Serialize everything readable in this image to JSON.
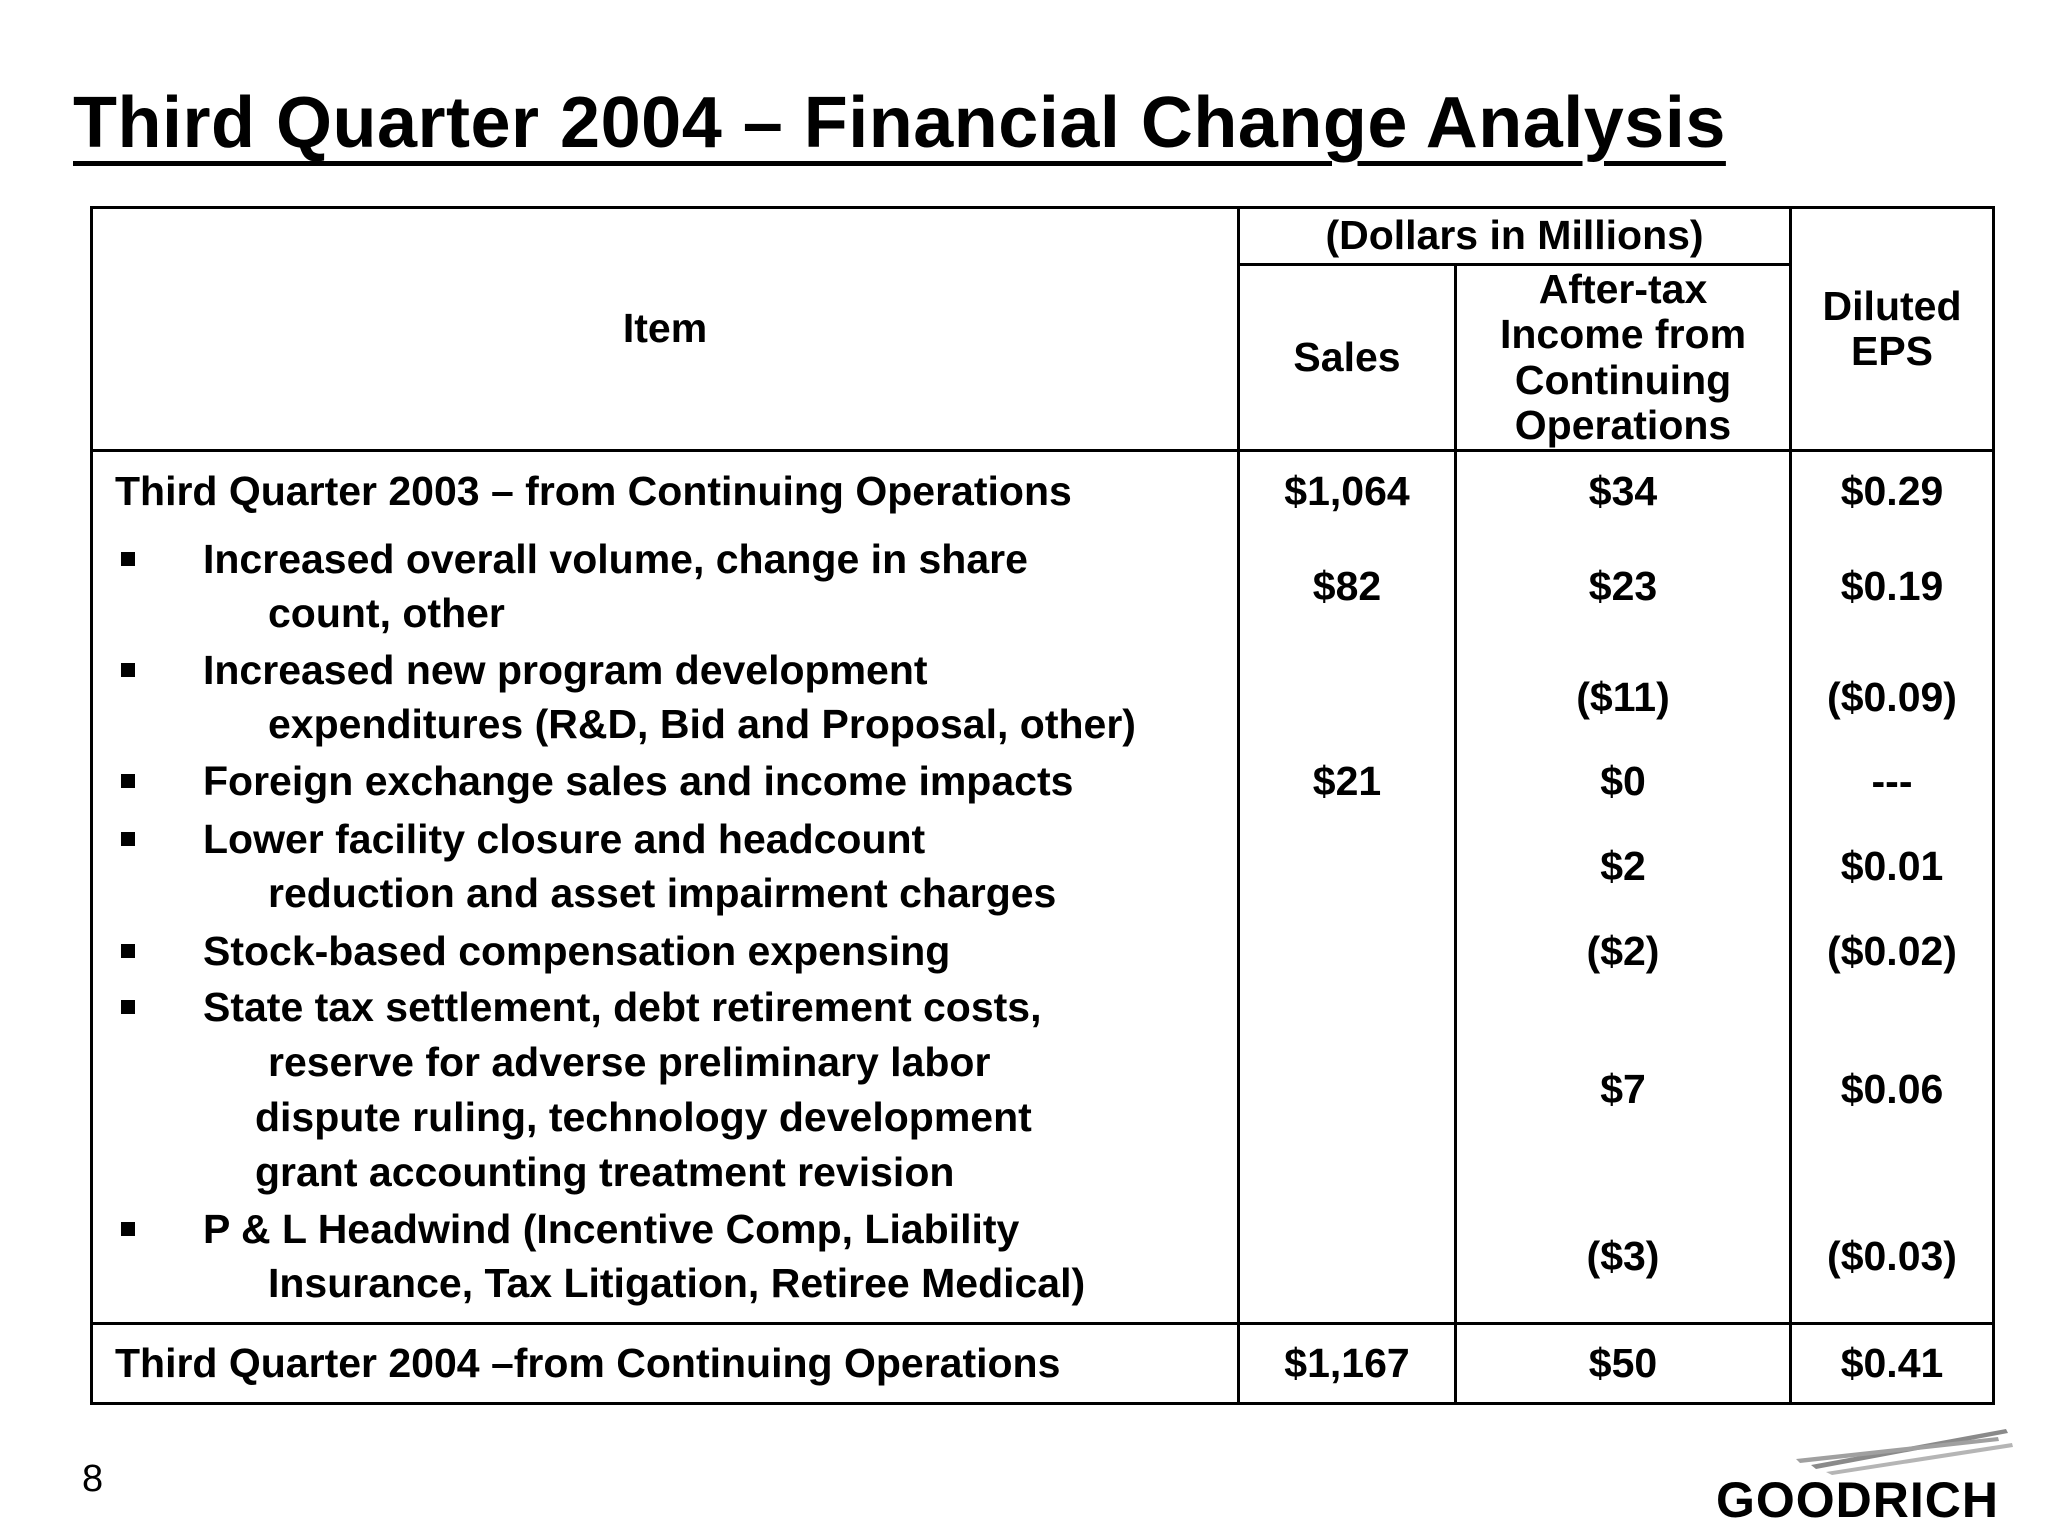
{
  "title": "Third Quarter 2004 – Financial Change Analysis",
  "table": {
    "header": {
      "item": "Item",
      "group": "(Dollars in Millions)",
      "sales": "Sales",
      "income_lines": [
        "After-tax",
        "Income from",
        "Continuing",
        "Operations"
      ],
      "eps_lines": [
        "Diluted",
        "EPS"
      ]
    },
    "start_row": {
      "label": "Third Quarter 2003 – from Continuing Operations",
      "sales": "$1,064",
      "income": "$34",
      "eps": "$0.29"
    },
    "items": [
      {
        "lines": [
          "Increased overall volume, change in share",
          "count, other"
        ],
        "sales": "$82",
        "income": "$23",
        "eps": "$0.19"
      },
      {
        "lines": [
          "Increased new program development",
          "expenditures (R&D, Bid and Proposal, other)"
        ],
        "sales": "",
        "income": "($11)",
        "eps": "($0.09)"
      },
      {
        "lines": [
          "Foreign exchange sales and income impacts"
        ],
        "sales": "$21",
        "income": "$0",
        "eps": "---"
      },
      {
        "lines": [
          "Lower facility closure and headcount",
          "reduction and asset impairment charges"
        ],
        "sales": "",
        "income": "$2",
        "eps": "$0.01"
      },
      {
        "lines": [
          "Stock-based compensation expensing"
        ],
        "sales": "",
        "income": "($2)",
        "eps": "($0.02)"
      },
      {
        "lines": [
          "State tax settlement, debt retirement costs,",
          "reserve for adverse preliminary labor",
          "dispute ruling, technology development",
          "grant accounting treatment revision"
        ],
        "sales": "",
        "income": "$7",
        "eps": "$0.06"
      },
      {
        "lines": [
          "P & L Headwind (Incentive Comp, Liability",
          "Insurance, Tax Litigation, Retiree Medical)"
        ],
        "sales": "",
        "income": "($3)",
        "eps": "($0.03)"
      }
    ],
    "end_row": {
      "label": "Third Quarter 2004 –from Continuing Operations",
      "sales": "$1,167",
      "income": "$50",
      "eps": "$0.41"
    }
  },
  "page_number": "8",
  "logo": {
    "text": "GOODRICH"
  }
}
